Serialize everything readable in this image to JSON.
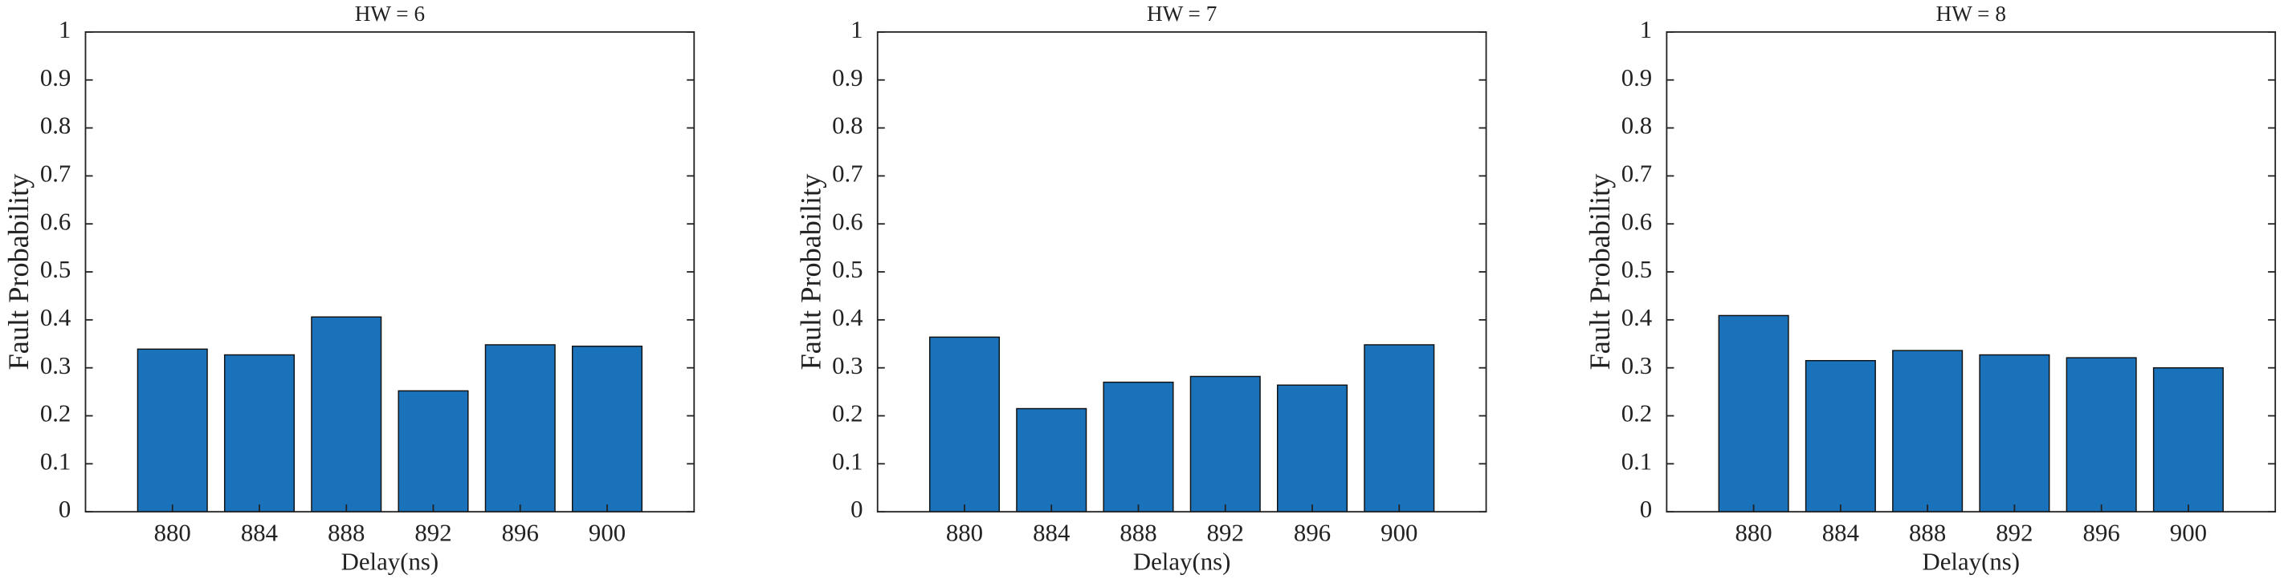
{
  "chart_data": [
    {
      "type": "bar",
      "title": "HW = 6",
      "xlabel": "Delay(ns)",
      "ylabel": "Fault Probability",
      "color": "#1a72bb",
      "x": [
        880,
        884,
        888,
        892,
        896,
        900
      ],
      "values": [
        0.339,
        0.327,
        0.406,
        0.252,
        0.348,
        0.345
      ],
      "xlim": [
        876,
        904
      ],
      "xticks": [
        880,
        884,
        888,
        892,
        896,
        900
      ],
      "ylim": [
        0,
        1
      ],
      "yticks": [
        0,
        0.1,
        0.2,
        0.3,
        0.4,
        0.5,
        0.6,
        0.7,
        0.8,
        0.9,
        1
      ]
    },
    {
      "type": "bar",
      "title": "HW = 7",
      "xlabel": "Delay(ns)",
      "ylabel": "Fault Probability",
      "color": "#1a72bb",
      "x": [
        880,
        884,
        888,
        892,
        896,
        900
      ],
      "values": [
        0.364,
        0.215,
        0.27,
        0.282,
        0.264,
        0.348
      ],
      "xlim": [
        876,
        904
      ],
      "xticks": [
        880,
        884,
        888,
        892,
        896,
        900
      ],
      "ylim": [
        0,
        1
      ],
      "yticks": [
        0,
        0.1,
        0.2,
        0.3,
        0.4,
        0.5,
        0.6,
        0.7,
        0.8,
        0.9,
        1
      ]
    },
    {
      "type": "bar",
      "title": "HW = 8",
      "xlabel": "Delay(ns)",
      "ylabel": "Fault Probability",
      "color": "#1a72bb",
      "x": [
        880,
        884,
        888,
        892,
        896,
        900
      ],
      "values": [
        0.409,
        0.315,
        0.336,
        0.327,
        0.321,
        0.3
      ],
      "xlim": [
        876,
        904
      ],
      "xticks": [
        880,
        884,
        888,
        892,
        896,
        900
      ],
      "ylim": [
        0,
        1
      ],
      "yticks": [
        0,
        0.1,
        0.2,
        0.3,
        0.4,
        0.5,
        0.6,
        0.7,
        0.8,
        0.9,
        1
      ]
    }
  ]
}
